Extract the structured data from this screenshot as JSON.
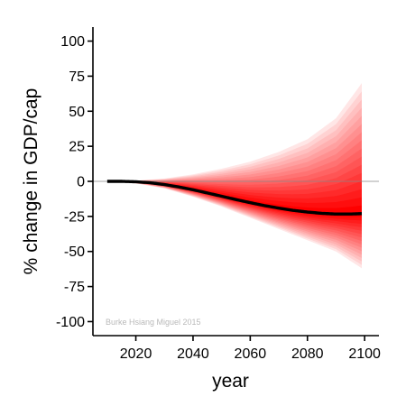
{
  "chart_data": {
    "type": "area",
    "xlabel": "year",
    "ylabel": "% change in GDP/cap",
    "xlim": [
      2005,
      2105
    ],
    "ylim": [
      -110,
      110
    ],
    "x_ticks": [
      2020,
      2040,
      2060,
      2080,
      2100
    ],
    "x_tick_labels": [
      "2020",
      "2040",
      "2060",
      "2080",
      "2100"
    ],
    "y_ticks": [
      100,
      75,
      50,
      25,
      0,
      -25,
      -50,
      -75,
      -100
    ],
    "y_tick_labels": [
      "100",
      "75",
      "50",
      "25",
      "0",
      "-25",
      "-50",
      "-75",
      "-100"
    ],
    "reference_line": 0,
    "grid": false,
    "legend": "none",
    "credit": "Burke Hsiang Miguel 2015",
    "colors": {
      "median_line": "#000000",
      "band_core": "#ff0000",
      "band_outer": "#ffe6e6",
      "reference_line": "#888888"
    },
    "median": {
      "x": [
        2010,
        2015,
        2020,
        2025,
        2030,
        2035,
        2040,
        2045,
        2050,
        2055,
        2060,
        2065,
        2070,
        2075,
        2080,
        2085,
        2090,
        2095,
        2099
      ],
      "y": [
        0,
        0,
        -0.3,
        -1,
        -2.3,
        -4,
        -6,
        -8.3,
        -10.6,
        -13,
        -15.2,
        -17.3,
        -19.1,
        -20.7,
        -21.9,
        -22.8,
        -23.3,
        -23.3,
        -23
      ]
    },
    "uncertainty_band": {
      "x": [
        2010,
        2020,
        2030,
        2040,
        2050,
        2060,
        2070,
        2080,
        2090,
        2099
      ],
      "upper": [
        0,
        0.5,
        2,
        5,
        9,
        14,
        21,
        30,
        45,
        70
      ],
      "lower": [
        0,
        -1.5,
        -5,
        -11,
        -18,
        -26,
        -34,
        -42,
        -50,
        -62
      ]
    }
  }
}
